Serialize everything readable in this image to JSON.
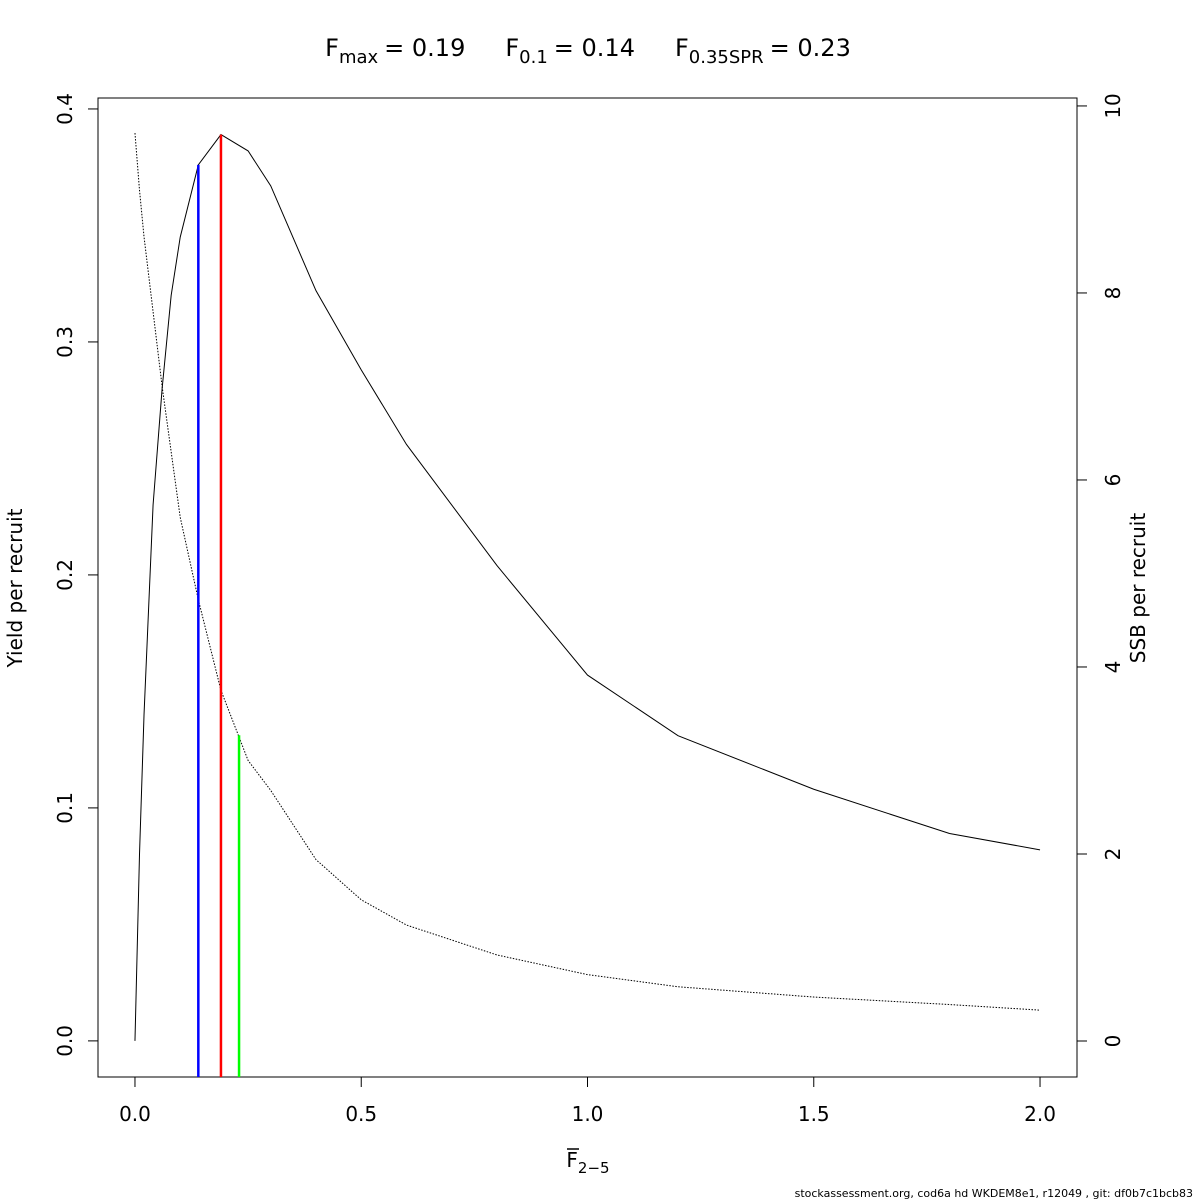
{
  "chart_data": {
    "type": "line",
    "title_items": [
      {
        "base": "F",
        "sub": "max",
        "label": "= 0.19"
      },
      {
        "base": "F",
        "sub": "0.1",
        "label": "= 0.14"
      },
      {
        "base": "F",
        "sub": "0.35SPR",
        "label": "= 0.23"
      }
    ],
    "xlabel": {
      "base": "F",
      "sub": "2−5"
    },
    "ylabel": "Yield per recruit",
    "y2label": "SSB per recruit",
    "footer": "stockassessment.org, cod6a hd WKDEM8e1, r12049 , git: df0b7c1bcb83",
    "x": [
      0,
      0.01,
      0.02,
      0.04,
      0.06,
      0.08,
      0.1,
      0.14,
      0.19,
      0.25,
      0.3,
      0.4,
      0.5,
      0.6,
      0.8,
      1.0,
      1.2,
      1.5,
      1.8,
      2.0
    ],
    "series": [
      {
        "color": "#000000",
        "dash": "none",
        "axis": "y",
        "values": [
          0,
          0.08,
          0.14,
          0.23,
          0.28,
          0.32,
          0.345,
          0.376,
          0.389,
          0.382,
          0.367,
          0.322,
          0.288,
          0.256,
          0.204,
          0.157,
          0.131,
          0.108,
          0.089,
          0.082
        ]
      },
      {
        "color": "#000000",
        "dash": "1.5 1.5",
        "axis": "y2",
        "values": [
          9.71,
          9.1,
          8.6,
          7.8,
          7.0,
          6.3,
          5.6,
          4.72,
          3.75,
          3.0,
          2.68,
          1.94,
          1.51,
          1.24,
          0.92,
          0.71,
          0.58,
          0.47,
          0.39,
          0.33
        ]
      }
    ],
    "reference_lines": [
      {
        "x": 0.14,
        "y": 0.376,
        "axis": "y",
        "color": "#0000ff"
      },
      {
        "x": 0.19,
        "y": 0.389,
        "axis": "y",
        "color": "#ff0000"
      },
      {
        "x": 0.23,
        "y": 3.27,
        "axis": "y2",
        "color": "#00ff00"
      }
    ],
    "xlim": [
      -0.0817,
      2.0817
    ],
    "ylim": [
      -0.0155,
      0.4047
    ],
    "y2lim": [
      -0.385,
      10.085
    ],
    "xticks": [
      {
        "value": 0,
        "label": "0.0"
      },
      0.5,
      {
        "value": 1,
        "label": "1.0"
      },
      1.5,
      {
        "value": 2,
        "label": "2.0"
      }
    ],
    "yticks": [
      {
        "value": 0,
        "label": "0.0"
      },
      0.1,
      0.2,
      0.3,
      0.4
    ],
    "y2ticks": [
      0,
      2,
      4,
      6,
      8,
      10
    ]
  }
}
